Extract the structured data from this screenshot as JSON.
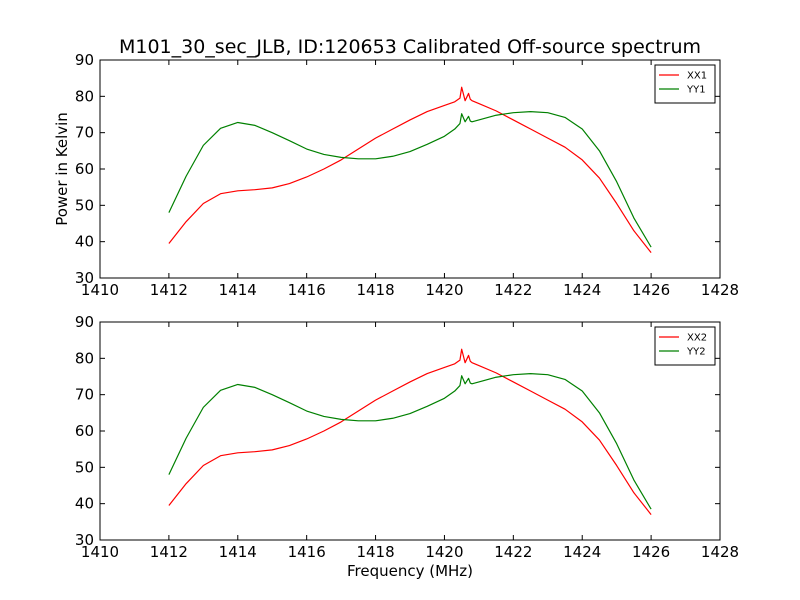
{
  "title": "M101_30_sec_JLB, ID:120653 Calibrated Off-source spectrum",
  "xlabel": "Frequency (MHz)",
  "ylabel": "Power in Kelvin",
  "colors": {
    "red": "#ff0000",
    "green": "#008000"
  },
  "chart_data": [
    {
      "type": "line",
      "xlim": [
        1410,
        1428
      ],
      "ylim": [
        30,
        90
      ],
      "xticks": [
        1410,
        1412,
        1414,
        1416,
        1418,
        1420,
        1422,
        1424,
        1426,
        1428
      ],
      "yticks": [
        30,
        40,
        50,
        60,
        70,
        80,
        90
      ],
      "legend": "top-right",
      "ylabel": "Power in Kelvin",
      "series": [
        {
          "name": "XX1",
          "color": "#ff0000",
          "x": [
            1412.0,
            1412.5,
            1413.0,
            1413.5,
            1414.0,
            1414.5,
            1415.0,
            1415.5,
            1416.0,
            1416.5,
            1417.0,
            1417.5,
            1418.0,
            1418.5,
            1419.0,
            1419.5,
            1420.0,
            1420.3,
            1420.45,
            1420.5,
            1420.6,
            1420.7,
            1420.75,
            1420.8,
            1421.0,
            1421.5,
            1422.0,
            1422.5,
            1423.0,
            1423.5,
            1424.0,
            1424.5,
            1425.0,
            1425.5,
            1426.0
          ],
          "y": [
            39.5,
            45.5,
            50.5,
            53.2,
            54.0,
            54.3,
            54.8,
            56.0,
            57.8,
            60.0,
            62.5,
            65.5,
            68.5,
            71.0,
            73.5,
            75.8,
            77.5,
            78.5,
            79.5,
            82.5,
            78.8,
            80.8,
            79.2,
            78.8,
            78.0,
            76.0,
            73.5,
            71.0,
            68.5,
            66.0,
            62.5,
            57.5,
            50.5,
            43.0,
            37.0
          ]
        },
        {
          "name": "YY1",
          "color": "#008000",
          "x": [
            1412.0,
            1412.5,
            1413.0,
            1413.5,
            1414.0,
            1414.5,
            1415.0,
            1415.5,
            1416.0,
            1416.5,
            1417.0,
            1417.5,
            1418.0,
            1418.5,
            1419.0,
            1419.5,
            1420.0,
            1420.3,
            1420.45,
            1420.5,
            1420.6,
            1420.7,
            1420.75,
            1420.8,
            1421.0,
            1421.5,
            1422.0,
            1422.5,
            1423.0,
            1423.5,
            1424.0,
            1424.5,
            1425.0,
            1425.5,
            1426.0
          ],
          "y": [
            48.0,
            58.0,
            66.5,
            71.2,
            72.8,
            72.0,
            70.0,
            67.8,
            65.5,
            64.0,
            63.2,
            62.8,
            62.8,
            63.5,
            64.8,
            66.8,
            69.0,
            71.0,
            72.5,
            75.2,
            73.0,
            74.5,
            73.2,
            73.0,
            73.5,
            74.8,
            75.5,
            75.8,
            75.5,
            74.2,
            71.0,
            65.0,
            56.5,
            46.5,
            38.5
          ]
        }
      ]
    },
    {
      "type": "line",
      "xlim": [
        1410,
        1428
      ],
      "ylim": [
        30,
        90
      ],
      "xticks": [
        1410,
        1412,
        1414,
        1416,
        1418,
        1420,
        1422,
        1424,
        1426,
        1428
      ],
      "yticks": [
        30,
        40,
        50,
        60,
        70,
        80,
        90
      ],
      "legend": "top-right",
      "xlabel": "Frequency (MHz)",
      "series": [
        {
          "name": "XX2",
          "color": "#ff0000",
          "x": [
            1412.0,
            1412.5,
            1413.0,
            1413.5,
            1414.0,
            1414.5,
            1415.0,
            1415.5,
            1416.0,
            1416.5,
            1417.0,
            1417.5,
            1418.0,
            1418.5,
            1419.0,
            1419.5,
            1420.0,
            1420.3,
            1420.45,
            1420.5,
            1420.6,
            1420.7,
            1420.75,
            1420.8,
            1421.0,
            1421.5,
            1422.0,
            1422.5,
            1423.0,
            1423.5,
            1424.0,
            1424.5,
            1425.0,
            1425.5,
            1426.0
          ],
          "y": [
            39.5,
            45.5,
            50.5,
            53.2,
            54.0,
            54.3,
            54.8,
            56.0,
            57.8,
            60.0,
            62.5,
            65.5,
            68.5,
            71.0,
            73.5,
            75.8,
            77.5,
            78.5,
            79.5,
            82.5,
            78.8,
            80.8,
            79.2,
            78.8,
            78.0,
            76.0,
            73.5,
            71.0,
            68.5,
            66.0,
            62.5,
            57.5,
            50.5,
            43.0,
            37.0
          ]
        },
        {
          "name": "YY2",
          "color": "#008000",
          "x": [
            1412.0,
            1412.5,
            1413.0,
            1413.5,
            1414.0,
            1414.5,
            1415.0,
            1415.5,
            1416.0,
            1416.5,
            1417.0,
            1417.5,
            1418.0,
            1418.5,
            1419.0,
            1419.5,
            1420.0,
            1420.3,
            1420.45,
            1420.5,
            1420.6,
            1420.7,
            1420.75,
            1420.8,
            1421.0,
            1421.5,
            1422.0,
            1422.5,
            1423.0,
            1423.5,
            1424.0,
            1424.5,
            1425.0,
            1425.5,
            1426.0
          ],
          "y": [
            48.0,
            58.0,
            66.5,
            71.2,
            72.8,
            72.0,
            70.0,
            67.8,
            65.5,
            64.0,
            63.2,
            62.8,
            62.8,
            63.5,
            64.8,
            66.8,
            69.0,
            71.0,
            72.5,
            75.2,
            73.0,
            74.5,
            73.2,
            73.0,
            73.5,
            74.8,
            75.5,
            75.8,
            75.5,
            74.2,
            71.0,
            65.0,
            56.5,
            46.5,
            38.5
          ]
        }
      ]
    }
  ]
}
